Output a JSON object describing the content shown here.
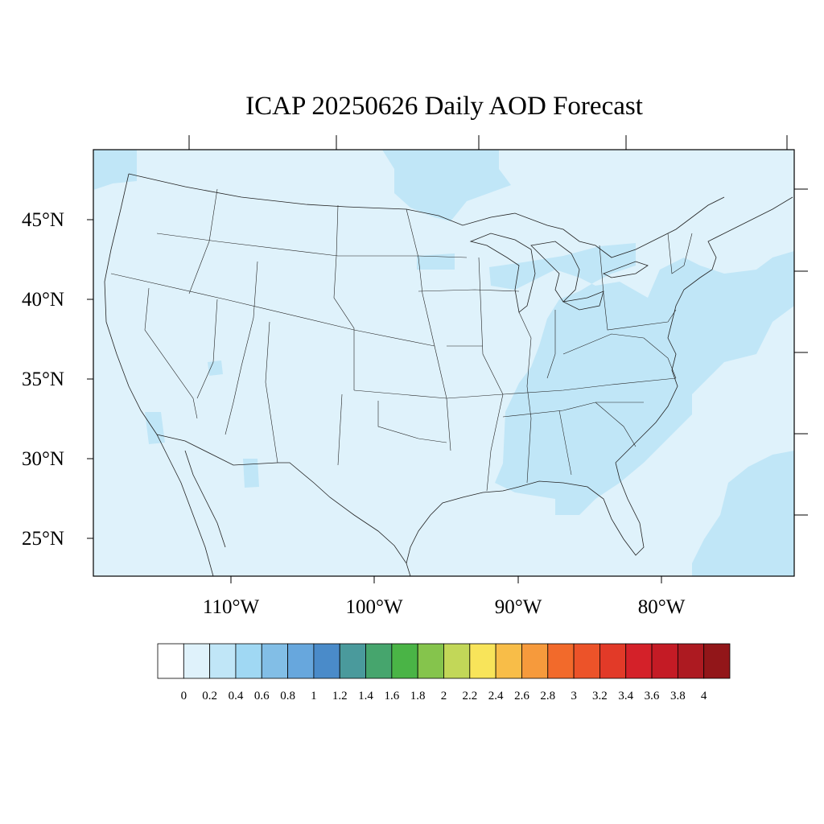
{
  "title": "ICAP 20250626 Daily AOD Forecast",
  "map": {
    "region": "Continental United States",
    "lon_range": [
      -119,
      -70
    ],
    "lat_range": [
      23,
      49.5
    ],
    "lat_labels": [
      "45°N",
      "40°N",
      "35°N",
      "30°N",
      "25°N"
    ],
    "lat_values": [
      45,
      40,
      35,
      30,
      25
    ],
    "lon_labels": [
      "110°W",
      "100°W",
      "90°W",
      "80°W"
    ],
    "lon_values": [
      -110,
      -100,
      -90,
      -80
    ],
    "background_aod_color": "#dff2fb",
    "elevated_aod_color": "#c0e6f7",
    "elevated_regions": [
      {
        "name": "southeast-us",
        "aod_range": "0.2-0.4"
      },
      {
        "name": "atlantic-offshore",
        "aod_range": "0.2-0.4"
      },
      {
        "name": "pacific-northwest",
        "aod_range": "0.2-0.4"
      },
      {
        "name": "northern-minnesota-ontario",
        "aod_range": "0.2-0.4"
      }
    ]
  },
  "colorbar": {
    "tick_labels": [
      "0",
      "0.2",
      "0.4",
      "0.6",
      "0.8",
      "1",
      "1.2",
      "1.4",
      "1.6",
      "1.8",
      "2",
      "2.2",
      "2.4",
      "2.6",
      "2.8",
      "3",
      "3.2",
      "3.4",
      "3.6",
      "3.8",
      "4"
    ],
    "colors": [
      "#ffffff",
      "#dff2fb",
      "#c0e6f7",
      "#a0d8f3",
      "#82bee6",
      "#67a7dd",
      "#4a8bc9",
      "#4a9a9c",
      "#46a56d",
      "#4ab446",
      "#85c44c",
      "#c2d758",
      "#f8e45a",
      "#f8bd48",
      "#f69a3c",
      "#f26a2b",
      "#ec5329",
      "#e23a28",
      "#d42129",
      "#c41b25",
      "#ad1a21",
      "#921619"
    ]
  }
}
